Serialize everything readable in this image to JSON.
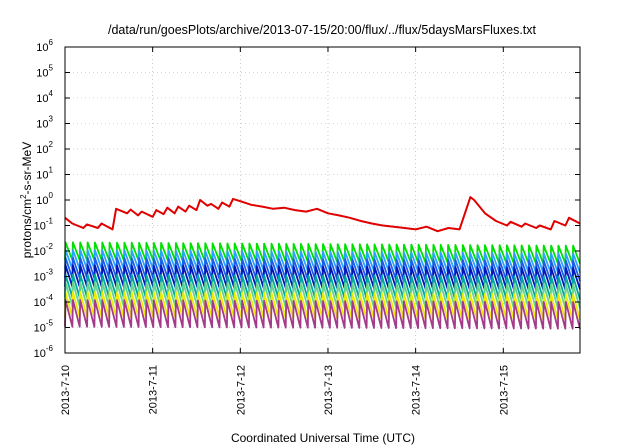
{
  "chart_data": {
    "type": "line",
    "title": "/data/run/goesPlots/archive/2013-07-15/20:00/flux/../flux/5daysMarsFluxes.txt",
    "xlabel": "Coordinated Universal Time (UTC)",
    "ylabel": {
      "base": "protons/cm",
      "sup": "2",
      "rest": "-s-sr-MeV"
    },
    "x_range": [
      "2013-07-10",
      "2013-07-15T21:00"
    ],
    "x_ticks": [
      "2013-7-10",
      "2013-7-11",
      "2013-7-12",
      "2013-7-13",
      "2013-7-14",
      "2013-7-15"
    ],
    "y_scale": "log",
    "ylim": [
      1e-06,
      1000000
    ],
    "y_ticks": [
      {
        "base": "10",
        "exp": "-6"
      },
      {
        "base": "10",
        "exp": "-5"
      },
      {
        "base": "10",
        "exp": "-4"
      },
      {
        "base": "10",
        "exp": "-3"
      },
      {
        "base": "10",
        "exp": "-2"
      },
      {
        "base": "10",
        "exp": "-1"
      },
      {
        "base": "10",
        "exp": "0"
      },
      {
        "base": "10",
        "exp": "1"
      },
      {
        "base": "10",
        "exp": "2"
      },
      {
        "base": "10",
        "exp": "3"
      },
      {
        "base": "10",
        "exp": "4"
      },
      {
        "base": "10",
        "exp": "5"
      },
      {
        "base": "10",
        "exp": "6"
      }
    ],
    "grid": "dotted",
    "legend": "none",
    "series": [
      {
        "color": "#e00000",
        "x": [
          "2013-07-10T00:00",
          "2013-07-10T02:00",
          "2013-07-10T05:00",
          "2013-07-10T06:00",
          "2013-07-10T09:00",
          "2013-07-10T10:00",
          "2013-07-10T13:00",
          "2013-07-10T14:00",
          "2013-07-10T17:00",
          "2013-07-10T18:00",
          "2013-07-10T20:00",
          "2013-07-10T21:00",
          "2013-07-11T00:00",
          "2013-07-11T01:00",
          "2013-07-11T03:00",
          "2013-07-11T04:00",
          "2013-07-11T06:00",
          "2013-07-11T07:00",
          "2013-07-11T09:00",
          "2013-07-11T10:00",
          "2013-07-11T12:00",
          "2013-07-11T13:00",
          "2013-07-11T15:00",
          "2013-07-11T16:00",
          "2013-07-11T18:00",
          "2013-07-11T19:00",
          "2013-07-11T21:00",
          "2013-07-11T22:00",
          "2013-07-12T00:00",
          "2013-07-12T03:00",
          "2013-07-12T06:00",
          "2013-07-12T09:00",
          "2013-07-12T12:00",
          "2013-07-12T15:00",
          "2013-07-12T18:00",
          "2013-07-12T21:00",
          "2013-07-13T00:00",
          "2013-07-13T03:00",
          "2013-07-13T06:00",
          "2013-07-13T09:00",
          "2013-07-13T12:00",
          "2013-07-13T15:00",
          "2013-07-13T18:00",
          "2013-07-13T21:00",
          "2013-07-14T00:00",
          "2013-07-14T03:00",
          "2013-07-14T06:00",
          "2013-07-14T09:00",
          "2013-07-14T12:00",
          "2013-07-14T15:00",
          "2013-07-14T16:00",
          "2013-07-14T19:00",
          "2013-07-14T22:00",
          "2013-07-15T01:00",
          "2013-07-15T02:00",
          "2013-07-15T05:00",
          "2013-07-15T06:00",
          "2013-07-15T09:00",
          "2013-07-15T10:00",
          "2013-07-15T13:00",
          "2013-07-15T14:00",
          "2013-07-15T17:00",
          "2013-07-15T18:00",
          "2013-07-15T21:00"
        ],
        "y": [
          0.2,
          0.12,
          0.08,
          0.11,
          0.08,
          0.12,
          0.07,
          0.45,
          0.3,
          0.42,
          0.25,
          0.35,
          0.22,
          0.4,
          0.28,
          0.5,
          0.3,
          0.55,
          0.35,
          0.6,
          0.4,
          1.0,
          0.6,
          0.7,
          0.45,
          0.8,
          0.55,
          1.1,
          0.9,
          0.65,
          0.55,
          0.45,
          0.5,
          0.4,
          0.35,
          0.45,
          0.3,
          0.25,
          0.2,
          0.15,
          0.12,
          0.1,
          0.09,
          0.08,
          0.07,
          0.09,
          0.06,
          0.08,
          0.07,
          1.3,
          1.0,
          0.3,
          0.15,
          0.1,
          0.14,
          0.09,
          0.12,
          0.08,
          0.1,
          0.07,
          0.15,
          0.1,
          0.2,
          0.12
        ]
      },
      {
        "color": "#00e000",
        "x": [
          "2013-07-10T00:00",
          "2013-07-15T21:00"
        ],
        "y": [
          0.022,
          0.016
        ]
      },
      {
        "color": "#2aa2ff",
        "x": [
          "2013-07-10T00:00",
          "2013-07-15T21:00"
        ],
        "y": [
          0.011,
          0.008
        ]
      },
      {
        "color": "#1b5ee8",
        "x": [
          "2013-07-10T00:00",
          "2013-07-15T21:00"
        ],
        "y": [
          0.0055,
          0.0042
        ]
      },
      {
        "color": "#0018b8",
        "x": [
          "2013-07-10T00:00",
          "2013-07-15T21:00"
        ],
        "y": [
          0.0028,
          0.0022
        ]
      },
      {
        "color": "#00a6a0",
        "x": [
          "2013-07-10T00:00",
          "2013-07-15T21:00"
        ],
        "y": [
          0.0012,
          0.001
        ]
      },
      {
        "color": "#66d488",
        "x": [
          "2013-07-10T00:00",
          "2013-07-15T21:00"
        ],
        "y": [
          0.0006,
          0.0005
        ]
      },
      {
        "color": "#ecec00",
        "x": [
          "2013-07-10T00:00",
          "2013-07-15T21:00"
        ],
        "y": [
          0.00025,
          0.0002
        ]
      },
      {
        "color": "#a33a8a",
        "x": [
          "2013-07-10T00:00",
          "2013-07-15T21:00"
        ],
        "y": [
          0.00012,
          0.0001
        ]
      }
    ]
  }
}
